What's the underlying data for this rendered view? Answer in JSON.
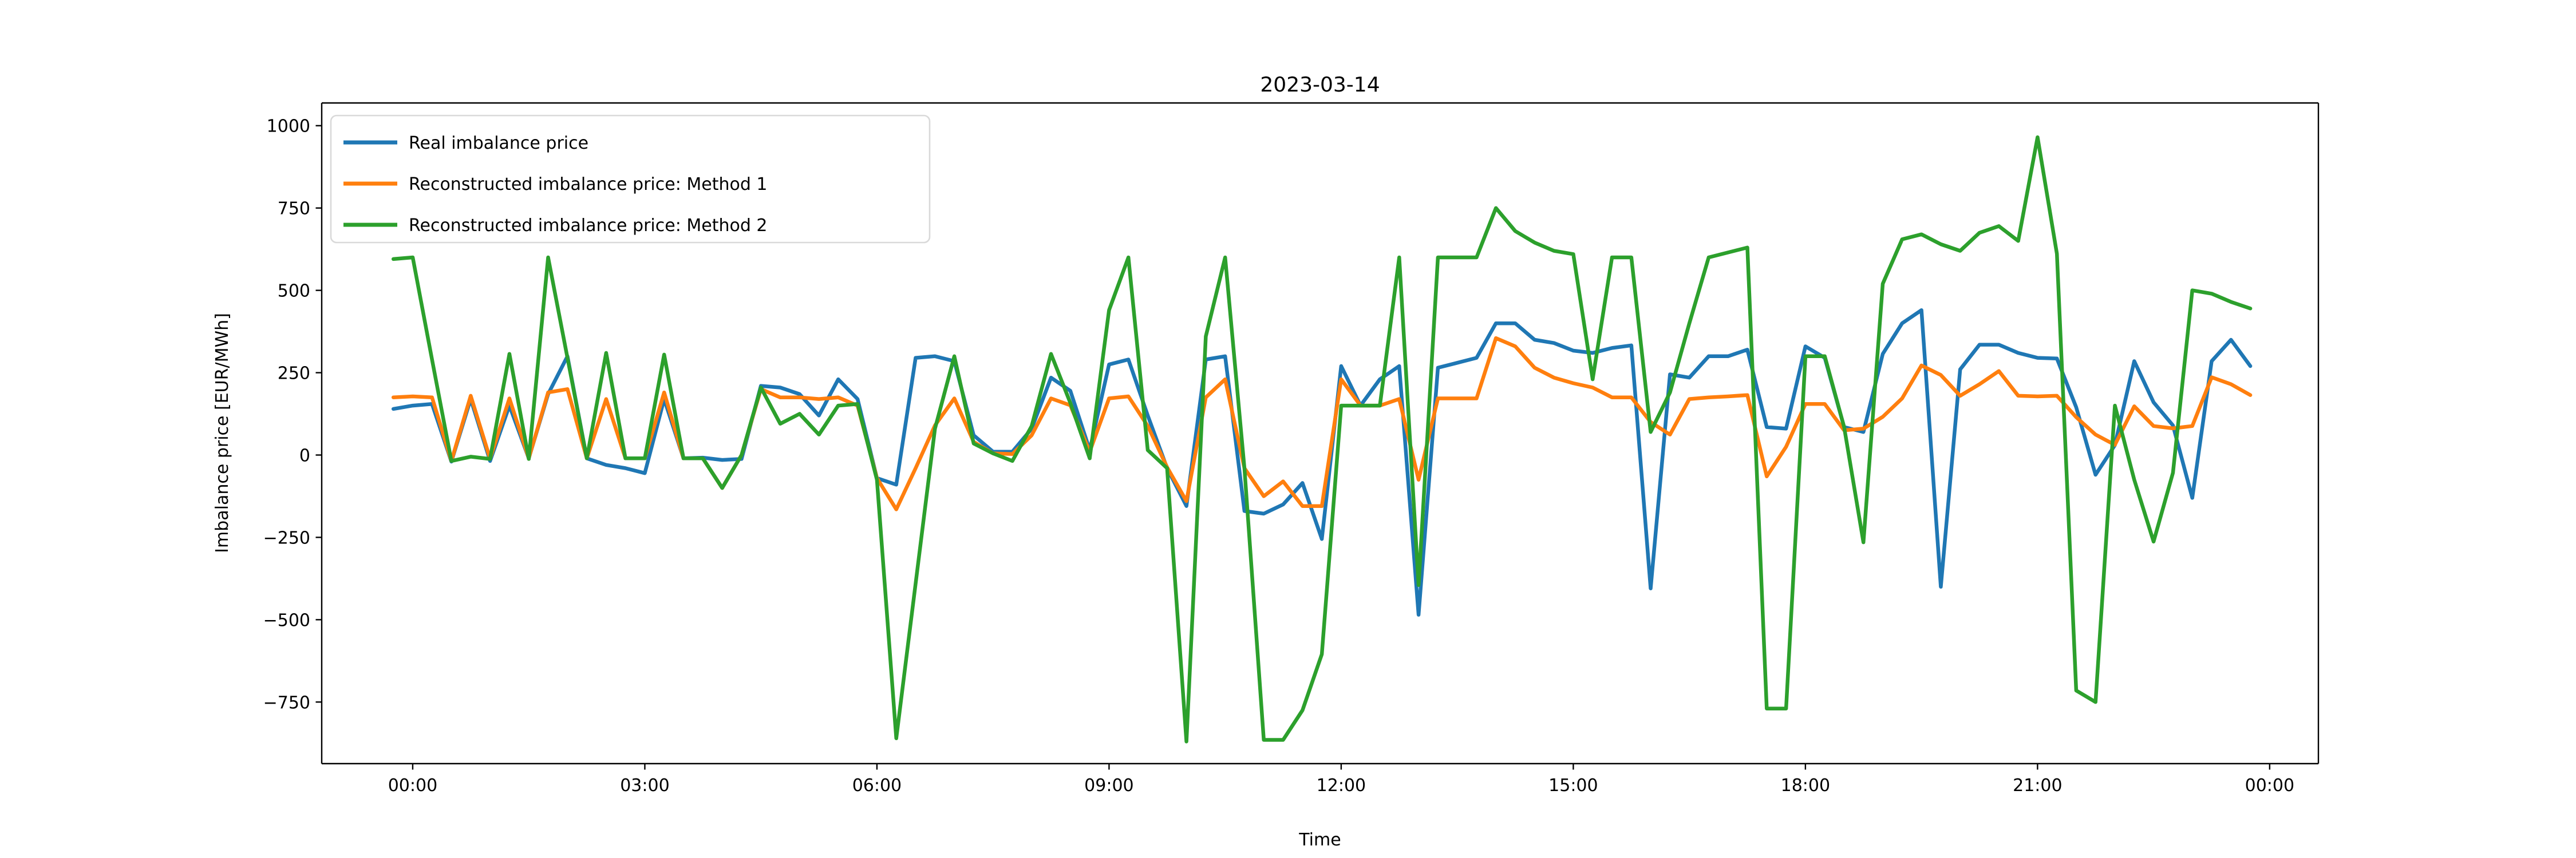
{
  "chart_data": {
    "type": "line",
    "title": "2023-03-14",
    "xlabel": "Time",
    "ylabel": "Imbalance price [EUR/MWh]",
    "grid": false,
    "legend_position": "upper left",
    "x_start_hour": -0.25,
    "x_step_hours": 0.25,
    "xlim_hours": [
      -1.176,
      24.63
    ],
    "ylim": [
      -937,
      1069
    ],
    "x_ticks": [
      {
        "hour": 0,
        "label": "00:00"
      },
      {
        "hour": 3,
        "label": "03:00"
      },
      {
        "hour": 6,
        "label": "06:00"
      },
      {
        "hour": 9,
        "label": "09:00"
      },
      {
        "hour": 12,
        "label": "12:00"
      },
      {
        "hour": 15,
        "label": "15:00"
      },
      {
        "hour": 18,
        "label": "18:00"
      },
      {
        "hour": 21,
        "label": "21:00"
      },
      {
        "hour": 24,
        "label": "00:00"
      }
    ],
    "y_ticks": [
      1000,
      750,
      500,
      250,
      0,
      -250,
      -500,
      -750
    ],
    "y_tick_labels": [
      "1000",
      "750",
      "500",
      "250",
      "0",
      "−250",
      "−500",
      "−750"
    ],
    "series": [
      {
        "name": "Real imbalance price",
        "color": "#1f77b4",
        "values": [
          140,
          150,
          155,
          -20,
          170,
          -18,
          150,
          -10,
          185,
          300,
          -10,
          -30,
          -40,
          -55,
          170,
          -10,
          -8,
          -15,
          -12,
          210,
          205,
          185,
          120,
          230,
          170,
          -70,
          -90,
          295,
          300,
          285,
          60,
          10,
          10,
          80,
          235,
          195,
          15,
          275,
          290,
          120,
          -40,
          -155,
          290,
          300,
          -170,
          -178,
          -150,
          -85,
          -255,
          270,
          150,
          230,
          270,
          -485,
          265,
          280,
          295,
          400,
          400,
          350,
          340,
          317,
          310,
          325,
          333,
          -405,
          245,
          235,
          300,
          300,
          320,
          85,
          80,
          330,
          295,
          85,
          70,
          307,
          400,
          440,
          -400,
          260,
          335,
          335,
          310,
          295,
          293,
          145,
          -60,
          30,
          285,
          160,
          90,
          -130,
          285,
          350,
          270
        ]
      },
      {
        "name": "Reconstructed imbalance price: Method 1",
        "color": "#ff7f0e",
        "values": [
          175,
          178,
          175,
          -18,
          180,
          -11,
          172,
          -10,
          190,
          200,
          -10,
          170,
          -10,
          -10,
          190,
          -10,
          -10,
          -100,
          0,
          200,
          175,
          175,
          170,
          175,
          150,
          -70,
          -165,
          -40,
          90,
          172,
          40,
          5,
          3,
          60,
          172,
          151,
          10,
          172,
          178,
          88,
          -37,
          -140,
          175,
          230,
          -40,
          -125,
          -80,
          -155,
          -155,
          230,
          150,
          150,
          170,
          -75,
          172,
          172,
          172,
          355,
          330,
          265,
          235,
          218,
          205,
          175,
          175,
          100,
          62,
          170,
          175,
          178,
          182,
          -65,
          25,
          155,
          155,
          75,
          80,
          116,
          172,
          272,
          243,
          180,
          215,
          255,
          180,
          178,
          180,
          115,
          62,
          31,
          148,
          88,
          81,
          88,
          236,
          215,
          182
        ]
      },
      {
        "name": "Reconstructed imbalance price: Method 2",
        "color": "#2ca02c",
        "values": [
          595,
          600,
          290,
          -18,
          -5,
          -12,
          307,
          -12,
          600,
          295,
          -10,
          310,
          -10,
          -10,
          305,
          -10,
          -10,
          -100,
          0,
          205,
          95,
          125,
          62,
          150,
          155,
          -75,
          -860,
          -390,
          80,
          300,
          35,
          5,
          -18,
          88,
          307,
          158,
          -10,
          440,
          600,
          15,
          -40,
          -870,
          360,
          600,
          -40,
          -865,
          -865,
          -775,
          -605,
          150,
          150,
          150,
          600,
          -395,
          600,
          600,
          600,
          750,
          680,
          645,
          620,
          610,
          230,
          600,
          600,
          70,
          190,
          400,
          600,
          615,
          630,
          -770,
          -770,
          300,
          300,
          85,
          -265,
          520,
          655,
          670,
          640,
          620,
          675,
          695,
          650,
          965,
          611,
          -715,
          -750,
          150,
          -75,
          -263,
          -54,
          500,
          490,
          465,
          445
        ]
      }
    ]
  }
}
